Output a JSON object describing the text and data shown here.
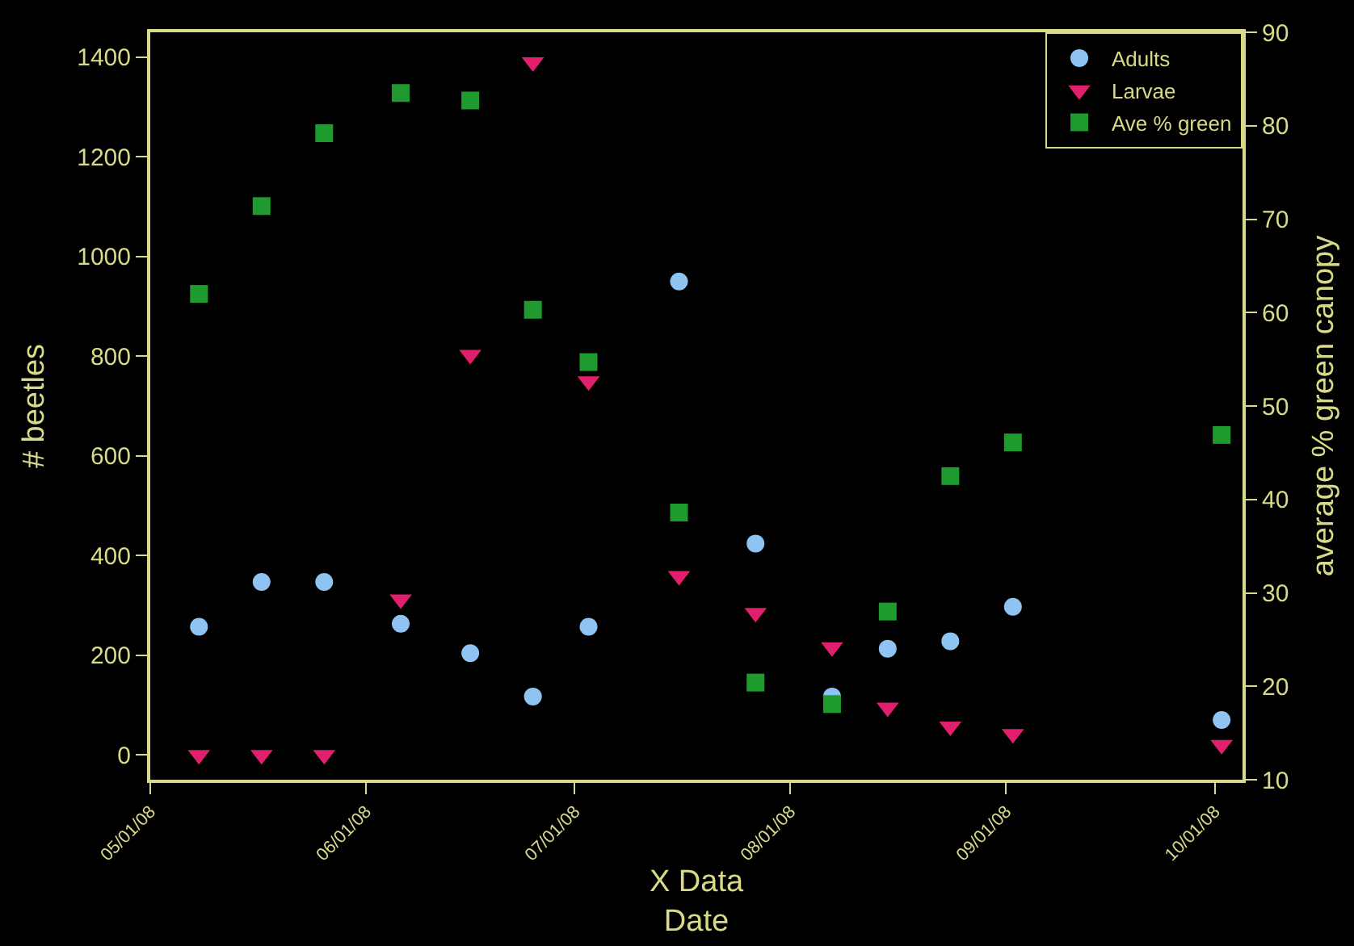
{
  "chart_data": {
    "type": "scatter",
    "xlabel": "X Data\nDate",
    "ylabel": "# beetles",
    "y2label": "average % green canopy",
    "x": [
      "2008-05-08",
      "2008-05-17",
      "2008-05-26",
      "2008-06-06",
      "2008-06-16",
      "2008-06-25",
      "2008-07-03",
      "2008-07-16",
      "2008-07-27",
      "2008-08-07",
      "2008-08-15",
      "2008-08-24",
      "2008-09-02",
      "2008-10-02"
    ],
    "series": [
      {
        "name": "Adults",
        "color": "#8fc3f2",
        "marker": "circle",
        "values": [
          257,
          347,
          347,
          263,
          204,
          117,
          257,
          950,
          424,
          117,
          213,
          228,
          297,
          70
        ]
      },
      {
        "name": "Larvae",
        "color": "#e0206e",
        "marker": "triangle",
        "values": [
          0,
          0,
          0,
          312,
          803,
          1390,
          750,
          359,
          285,
          216,
          95,
          57,
          42,
          20
        ]
      },
      {
        "name": "Ave % green",
        "color": "#1f9a2e",
        "marker": "square",
        "axis": "y2",
        "values": [
          62.0,
          71.4,
          79.2,
          83.5,
          82.7,
          60.3,
          54.7,
          38.6,
          20.4,
          18.1,
          28.0,
          42.5,
          46.1,
          46.9
        ]
      }
    ],
    "xlim": [
      "2008-05-01",
      "2008-10-05"
    ],
    "xticks": [
      {
        "value": "2008-05-01",
        "label": "05/01/08"
      },
      {
        "value": "2008-06-01",
        "label": "06/01/08"
      },
      {
        "value": "2008-07-01",
        "label": "07/01/08"
      },
      {
        "value": "2008-08-01",
        "label": "08/01/08"
      },
      {
        "value": "2008-09-01",
        "label": "09/01/08"
      },
      {
        "value": "2008-10-01",
        "label": "10/01/08"
      }
    ],
    "ylim": [
      -50,
      1450
    ],
    "yticks": [
      0,
      200,
      400,
      600,
      800,
      1000,
      1200,
      1400
    ],
    "y2lim": [
      10,
      90
    ],
    "y2ticks": [
      10,
      20,
      30,
      40,
      50,
      60,
      70,
      80,
      90
    ],
    "grid": false,
    "legend": "top right"
  }
}
